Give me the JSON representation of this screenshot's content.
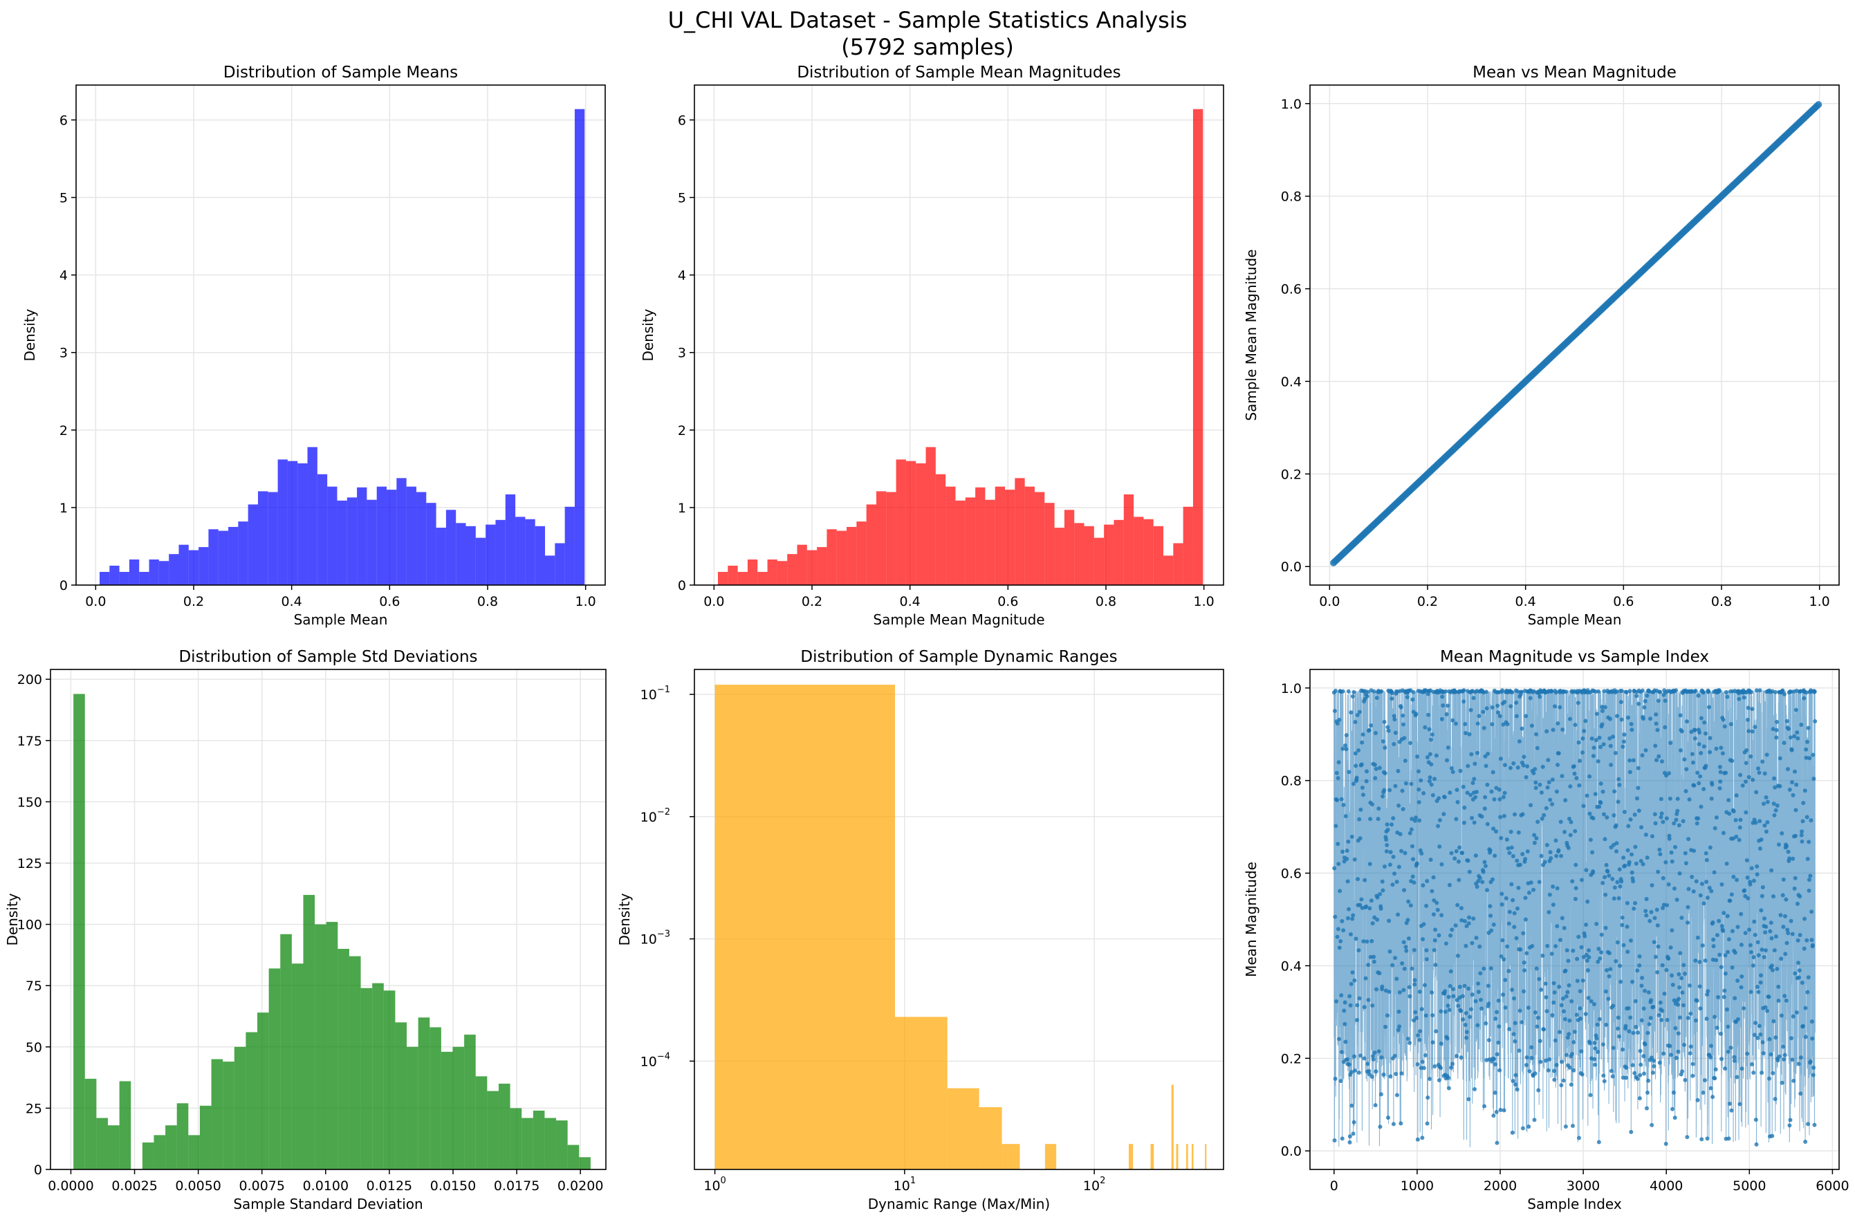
{
  "figure": {
    "title": "U_CHI VAL Dataset - Sample Statistics Analysis",
    "subtitle": "(5792 samples)"
  },
  "colors": {
    "blue": "#0000ff",
    "red": "#ff0000",
    "green": "#008000",
    "orange": "#ffa500",
    "steel": "#1f77b4",
    "grid": "#e6e6e6"
  },
  "chart_data": [
    {
      "id": "means",
      "type": "bar",
      "title": "Distribution of Sample Means",
      "xlabel": "Sample Mean",
      "ylabel": "Density",
      "color": "#0000ff",
      "opacity": 0.7,
      "grid": true,
      "xlim": [
        -0.04,
        1.04
      ],
      "ylim": [
        0,
        6.45
      ],
      "xticks": [
        0,
        0.2,
        0.4,
        0.6,
        0.8,
        1.0
      ],
      "xtick_labels": [
        "0.0",
        "0.2",
        "0.4",
        "0.6",
        "0.8",
        "1.0"
      ],
      "yticks": [
        0,
        1,
        2,
        3,
        4,
        5,
        6
      ],
      "ytick_labels": [
        "0",
        "1",
        "2",
        "3",
        "4",
        "5",
        "6"
      ],
      "bin_start": 0.008,
      "bin_end": 0.998,
      "values": [
        0.17,
        0.25,
        0.17,
        0.33,
        0.17,
        0.33,
        0.31,
        0.4,
        0.52,
        0.45,
        0.49,
        0.72,
        0.7,
        0.75,
        0.82,
        1.04,
        1.21,
        1.2,
        1.62,
        1.6,
        1.57,
        1.78,
        1.43,
        1.27,
        1.09,
        1.13,
        1.26,
        1.1,
        1.27,
        1.23,
        1.38,
        1.27,
        1.2,
        1.06,
        0.74,
        0.97,
        0.8,
        0.76,
        0.61,
        0.78,
        0.84,
        1.17,
        0.88,
        0.85,
        0.76,
        0.38,
        0.54,
        1.01,
        6.14
      ]
    },
    {
      "id": "mags",
      "type": "bar",
      "title": "Distribution of Sample Mean Magnitudes",
      "xlabel": "Sample Mean Magnitude",
      "ylabel": "Density",
      "color": "#ff0000",
      "opacity": 0.7,
      "grid": true,
      "xlim": [
        -0.04,
        1.04
      ],
      "ylim": [
        0,
        6.45
      ],
      "xticks": [
        0,
        0.2,
        0.4,
        0.6,
        0.8,
        1.0
      ],
      "xtick_labels": [
        "0.0",
        "0.2",
        "0.4",
        "0.6",
        "0.8",
        "1.0"
      ],
      "yticks": [
        0,
        1,
        2,
        3,
        4,
        5,
        6
      ],
      "ytick_labels": [
        "0",
        "1",
        "2",
        "3",
        "4",
        "5",
        "6"
      ],
      "bin_start": 0.008,
      "bin_end": 0.998,
      "values": [
        0.17,
        0.25,
        0.17,
        0.33,
        0.17,
        0.33,
        0.31,
        0.4,
        0.52,
        0.45,
        0.49,
        0.72,
        0.7,
        0.75,
        0.82,
        1.04,
        1.21,
        1.2,
        1.62,
        1.6,
        1.57,
        1.78,
        1.43,
        1.27,
        1.09,
        1.13,
        1.26,
        1.1,
        1.27,
        1.23,
        1.38,
        1.27,
        1.2,
        1.06,
        0.74,
        0.97,
        0.8,
        0.76,
        0.61,
        0.78,
        0.84,
        1.17,
        0.88,
        0.85,
        0.76,
        0.38,
        0.54,
        1.01,
        6.14
      ]
    },
    {
      "id": "scatter1",
      "type": "scatter",
      "title": "Mean vs Mean Magnitude",
      "xlabel": "Sample Mean",
      "ylabel": "Sample Mean Magnitude",
      "color": "#1f77b4",
      "grid": true,
      "xlim": [
        -0.04,
        1.04
      ],
      "ylim": [
        -0.04,
        1.04
      ],
      "xticks": [
        0,
        0.2,
        0.4,
        0.6,
        0.8,
        1.0
      ],
      "xtick_labels": [
        "0.0",
        "0.2",
        "0.4",
        "0.6",
        "0.8",
        "1.0"
      ],
      "yticks": [
        0,
        0.2,
        0.4,
        0.6,
        0.8,
        1.0
      ],
      "ytick_labels": [
        "0.0",
        "0.2",
        "0.4",
        "0.6",
        "0.8",
        "1.0"
      ],
      "x_range": [
        0.008,
        0.998
      ],
      "relation": "y = x"
    },
    {
      "id": "stds",
      "type": "bar",
      "title": "Distribution of Sample Std Deviations",
      "xlabel": "Sample Standard Deviation",
      "ylabel": "Density",
      "color": "#008000",
      "opacity": 0.7,
      "grid": true,
      "xlim": [
        -0.0008,
        0.021
      ],
      "ylim": [
        0,
        204
      ],
      "xticks": [
        0,
        0.0025,
        0.005,
        0.0075,
        0.01,
        0.0125,
        0.015,
        0.0175,
        0.02
      ],
      "xtick_labels": [
        "0.0000",
        "0.0025",
        "0.0050",
        "0.0075",
        "0.0100",
        "0.0125",
        "0.0150",
        "0.0175",
        "0.0200"
      ],
      "yticks": [
        0,
        25,
        50,
        75,
        100,
        125,
        150,
        175,
        200
      ],
      "ytick_labels": [
        "0",
        "25",
        "50",
        "75",
        "100",
        "125",
        "150",
        "175",
        "200"
      ],
      "bin_start": 0.0001,
      "bin_end": 0.0204,
      "values": [
        194,
        37,
        21,
        18,
        36,
        0,
        11,
        14,
        18,
        27,
        14,
        26,
        45,
        44,
        50,
        56,
        64,
        82,
        96,
        84,
        112,
        100,
        101,
        90,
        87,
        74,
        76,
        73,
        60,
        50,
        62,
        58,
        48,
        50,
        55,
        38,
        32,
        35,
        25,
        21,
        24,
        21,
        20,
        10,
        5
      ]
    },
    {
      "id": "dyn",
      "type": "bar",
      "title": "Distribution of Sample Dynamic Ranges",
      "xlabel": "Dynamic Range (Max/Min)",
      "ylabel": "Density",
      "color": "#ffa500",
      "opacity": 0.7,
      "grid": true,
      "xscale": "log",
      "yscale": "log",
      "xlim": [
        0.78,
        480
      ],
      "ylim": [
        1.3e-05,
        0.16
      ],
      "xticks": [
        1,
        10,
        100
      ],
      "xtick_labels": [
        {
          "base": "10",
          "exp": "0"
        },
        {
          "base": "10",
          "exp": "1"
        },
        {
          "base": "10",
          "exp": "2"
        }
      ],
      "yticks": [
        0.0001,
        0.001,
        0.01,
        0.1
      ],
      "ytick_labels": [
        {
          "base": "10",
          "exp": "−4"
        },
        {
          "base": "10",
          "exp": "−3"
        },
        {
          "base": "10",
          "exp": "−2"
        },
        {
          "base": "10",
          "exp": "−1"
        }
      ],
      "bins": [
        {
          "x0": 1.0,
          "x1": 8.9,
          "value": 0.12
        },
        {
          "x0": 8.9,
          "x1": 16.8,
          "value": 0.00023
        },
        {
          "x0": 16.8,
          "x1": 24.7,
          "value": 6e-05
        },
        {
          "x0": 24.7,
          "x1": 32.6,
          "value": 4.2e-05
        },
        {
          "x0": 32.6,
          "x1": 40.5,
          "value": 2.1e-05
        },
        {
          "x0": 55.0,
          "x1": 63.0,
          "value": 2.1e-05
        },
        {
          "x0": 152,
          "x1": 160,
          "value": 2.1e-05
        },
        {
          "x0": 198,
          "x1": 206,
          "value": 2.1e-05
        },
        {
          "x0": 255,
          "x1": 262,
          "value": 6.4e-05
        },
        {
          "x0": 270,
          "x1": 277,
          "value": 2.1e-05
        },
        {
          "x0": 305,
          "x1": 312,
          "value": 2.1e-05
        },
        {
          "x0": 326,
          "x1": 333,
          "value": 2.1e-05
        },
        {
          "x0": 383,
          "x1": 390,
          "value": 2.1e-05
        }
      ]
    },
    {
      "id": "index",
      "type": "line",
      "title": "Mean Magnitude vs Sample Index",
      "xlabel": "Sample Index",
      "ylabel": "Mean Magnitude",
      "color": "#1f77b4",
      "grid": true,
      "xlim": [
        -290,
        6080
      ],
      "ylim": [
        -0.04,
        1.04
      ],
      "xticks": [
        0,
        1000,
        2000,
        3000,
        4000,
        5000,
        6000
      ],
      "xtick_labels": [
        "0",
        "1000",
        "2000",
        "3000",
        "4000",
        "5000",
        "6000"
      ],
      "yticks": [
        0,
        0.2,
        0.4,
        0.6,
        0.8,
        1.0
      ],
      "ytick_labels": [
        "0.0",
        "0.2",
        "0.4",
        "0.6",
        "0.8",
        "1.0"
      ],
      "n_samples": 5792,
      "y_range": [
        0.008,
        0.995
      ]
    }
  ]
}
